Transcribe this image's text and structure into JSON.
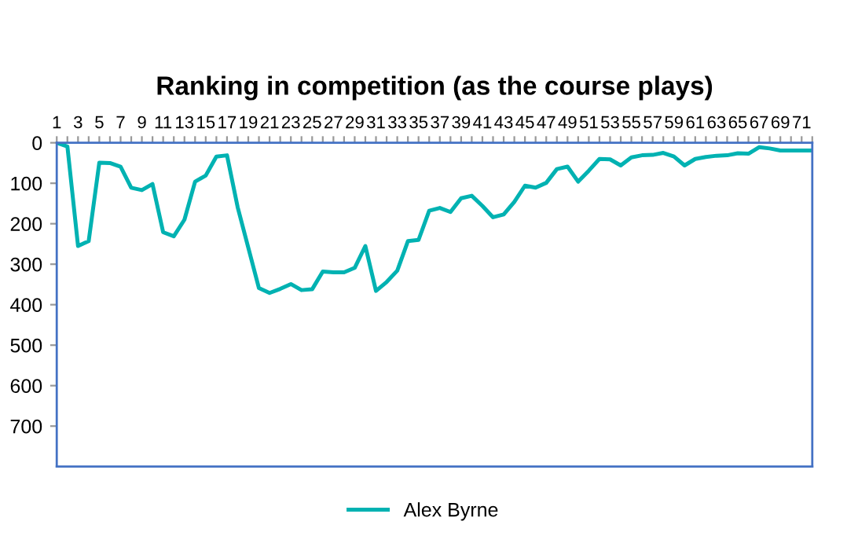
{
  "chart_data": {
    "type": "line",
    "title": "Ranking in competition (as the course plays)",
    "categories": [
      "1",
      null,
      "3",
      null,
      "5",
      null,
      "7",
      null,
      "9",
      null,
      "11",
      null,
      "13",
      null,
      "15",
      null,
      "17",
      null,
      "19",
      null,
      "21",
      null,
      "23",
      null,
      "25",
      null,
      "27",
      null,
      "29",
      null,
      "31",
      null,
      "33",
      null,
      "35",
      null,
      "37",
      null,
      "39",
      null,
      "41",
      null,
      "43",
      null,
      "45",
      null,
      "47",
      null,
      "49",
      null,
      "51",
      null,
      "53",
      null,
      "55",
      null,
      "57",
      null,
      "59",
      null,
      "61",
      null,
      "63",
      null,
      "65",
      null,
      "67",
      null,
      "69",
      null,
      "71",
      null
    ],
    "series": [
      {
        "name": "Alex Byrne",
        "color": "#00b2b2",
        "values": [
          0,
          9,
          255,
          243,
          49,
          50,
          59,
          111,
          117,
          102,
          221,
          231,
          190,
          96,
          81,
          34,
          31,
          159,
          259,
          359,
          371,
          361,
          349,
          364,
          362,
          318,
          320,
          320,
          309,
          255,
          366,
          344,
          316,
          243,
          240,
          168,
          161,
          171,
          137,
          131,
          156,
          184,
          177,
          146,
          106,
          111,
          99,
          65,
          59,
          96,
          69,
          40,
          41,
          56,
          36,
          31,
          30,
          25,
          34,
          56,
          40,
          35,
          32,
          31,
          26,
          27,
          11,
          14,
          19,
          19,
          19,
          19
        ]
      }
    ],
    "ylim": [
      800,
      0
    ],
    "yticks": [
      0,
      100,
      200,
      300,
      400,
      500,
      600,
      700
    ],
    "grid": false,
    "legend": "bottom",
    "marker": "none",
    "line_style": "solid"
  }
}
